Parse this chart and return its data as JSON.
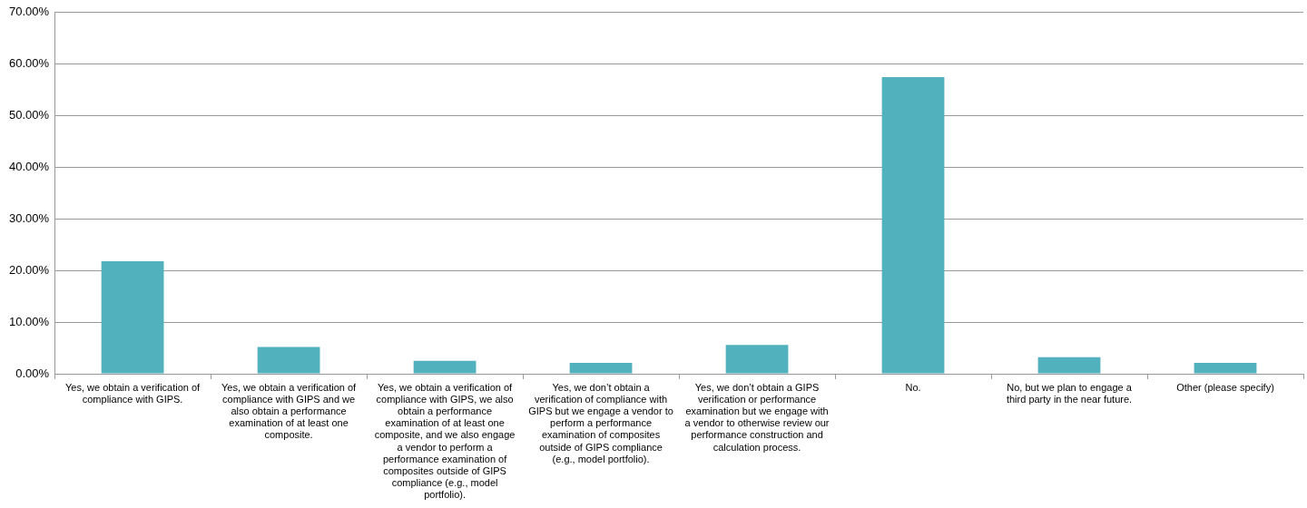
{
  "chart_data": {
    "type": "bar",
    "categories": [
      "Yes, we obtain a verification of compliance with GIPS.",
      "Yes, we obtain a verification of compliance with GIPS and we also obtain a performance examination of at least one composite.",
      "Yes, we obtain a verification of compliance with GIPS, we also obtain a performance examination of at least one composite, and we also engage a vendor to perform a performance examination of composites outside of GIPS compliance (e.g., model portfolio).",
      "Yes, we don’t obtain a verification of compliance with GIPS but we engage a vendor to perform a performance examination of composites outside of GIPS compliance (e.g., model portfolio).",
      "Yes, we don’t obtain a GIPS verification or performance examination but we engage with a vendor to otherwise review our performance construction and calculation process.",
      "No.",
      "No, but we plan to engage a third party in the near future.",
      "Other (please specify)"
    ],
    "values": [
      21.8,
      5.2,
      2.5,
      2.1,
      5.6,
      57.5,
      3.2,
      2.1
    ],
    "color": "#51b1bd",
    "ylim": [
      0,
      70
    ],
    "yticks": [
      {
        "value": 0,
        "label": "0.00%"
      },
      {
        "value": 10,
        "label": "10.00%"
      },
      {
        "value": 20,
        "label": "20.00%"
      },
      {
        "value": 30,
        "label": "30.00%"
      },
      {
        "value": 40,
        "label": "40.00%"
      },
      {
        "value": 50,
        "label": "50.00%"
      },
      {
        "value": 60,
        "label": "60.00%"
      },
      {
        "value": 70,
        "label": "70.00%"
      }
    ],
    "grid": "y",
    "legend": false
  }
}
